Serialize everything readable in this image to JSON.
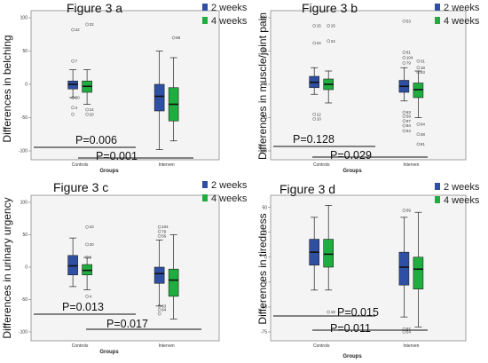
{
  "chart_data": [
    {
      "type": "box",
      "title": "Figure 3 a",
      "ylabel": "Differences in belching",
      "xlabel": "Groups",
      "categories": [
        "Controls",
        "Interven"
      ],
      "ylim": [
        -100,
        100
      ],
      "yticks": [
        100,
        50,
        0,
        -50,
        -100
      ],
      "ytick_labels": [
        "100",
        "50",
        "0",
        "-50",
        "-100"
      ],
      "legend": [
        {
          "label": "2 weeks",
          "color": "#2e4fa3"
        },
        {
          "label": "4 weeks",
          "color": "#1fad3f"
        }
      ],
      "series": [
        {
          "name": "2 weeks",
          "color": "#2e4fa3",
          "boxes": [
            {
              "category": "Controls",
              "min": -20,
              "q1": -7,
              "median": 0,
              "q3": 5,
              "max": 22,
              "outliers": [
                {
                  "v": 82,
                  "label": "22"
                },
                {
                  "v": 35,
                  "label": "7"
                },
                {
                  "v": -20,
                  "label": "20"
                },
                {
                  "v": -35,
                  "label": "4"
                },
                {
                  "v": -45,
                  "label": ""
                }
              ]
            },
            {
              "category": "Interven",
              "min": -98,
              "q1": -40,
              "median": -18,
              "q3": 0,
              "max": 50,
              "outliers": []
            }
          ]
        },
        {
          "name": "4 weeks",
          "color": "#1fad3f",
          "boxes": [
            {
              "category": "Controls",
              "min": -30,
              "q1": -12,
              "median": -3,
              "q3": 5,
              "max": 22,
              "outliers": [
                {
                  "v": 90,
                  "label": "22"
                },
                {
                  "v": -38,
                  "label": "14"
                },
                {
                  "v": -45,
                  "label": "20"
                }
              ]
            },
            {
              "category": "Interven",
              "min": -85,
              "q1": -55,
              "median": -30,
              "q3": -5,
              "max": 40,
              "outliers": [
                {
                  "v": 70,
                  "label": "68"
                }
              ]
            }
          ]
        }
      ],
      "annotations": [
        {
          "text": "P=0.006",
          "level": 0
        },
        {
          "text": "P=0.001",
          "level": 1
        }
      ]
    },
    {
      "type": "box",
      "title": "Figure 3 b",
      "ylabel": "Differences in muscle/joint pain",
      "xlabel": "Groups",
      "categories": [
        "Controls",
        "Interven"
      ],
      "ylim": [
        -100,
        100
      ],
      "yticks": [
        100,
        50,
        0,
        -50,
        -100
      ],
      "ytick_labels": [
        "100",
        "50",
        "0",
        "-50",
        "-100"
      ],
      "legend": [
        {
          "label": "2 weeks",
          "color": "#2e4fa3"
        },
        {
          "label": "4 weeks",
          "color": "#1fad3f"
        }
      ],
      "series": [
        {
          "name": "2 weeks",
          "color": "#2e4fa3",
          "boxes": [
            {
              "category": "Controls",
              "min": -15,
              "q1": -5,
              "median": 3,
              "q3": 12,
              "max": 25,
              "outliers": [
                {
                  "v": 88,
                  "label": "15"
                },
                {
                  "v": 62,
                  "label": "24"
                },
                {
                  "v": -45,
                  "label": "12"
                },
                {
                  "v": -52,
                  "label": "10"
                }
              ]
            },
            {
              "category": "Interven",
              "min": -25,
              "q1": -12,
              "median": -3,
              "q3": 6,
              "max": 25,
              "outliers": [
                {
                  "v": 95,
                  "label": "53"
                },
                {
                  "v": 48,
                  "label": "61"
                },
                {
                  "v": 40,
                  "label": "104"
                },
                {
                  "v": 32,
                  "label": "79"
                },
                {
                  "v": -42,
                  "label": "63"
                },
                {
                  "v": -48,
                  "label": "59"
                },
                {
                  "v": -55,
                  "label": "97"
                },
                {
                  "v": -62,
                  "label": "84"
                },
                {
                  "v": -70,
                  "label": "64"
                }
              ]
            }
          ]
        },
        {
          "name": "4 weeks",
          "color": "#1fad3f",
          "boxes": [
            {
              "category": "Controls",
              "min": -28,
              "q1": -8,
              "median": 0,
              "q3": 8,
              "max": 20,
              "outliers": [
                {
                  "v": 88,
                  "label": "15"
                },
                {
                  "v": 65,
                  "label": "24"
                }
              ]
            },
            {
              "category": "Interven",
              "min": -50,
              "q1": -20,
              "median": -8,
              "q3": 2,
              "max": 20,
              "outliers": [
                {
                  "v": 35,
                  "label": "31"
                },
                {
                  "v": 25,
                  "label": "18"
                },
                {
                  "v": 18,
                  "label": "53"
                },
                {
                  "v": -60,
                  "label": "64"
                },
                {
                  "v": -75,
                  "label": "28"
                },
                {
                  "v": -90,
                  "label": "81"
                }
              ]
            }
          ]
        }
      ],
      "annotations": [
        {
          "text": "P=0.128",
          "level": 0
        },
        {
          "text": "P=0.029",
          "level": 1
        }
      ]
    },
    {
      "type": "box",
      "title": "Figure 3 c",
      "ylabel": "Differences in urinary urgency",
      "xlabel": "Groups",
      "categories": [
        "Controls",
        "Interven"
      ],
      "ylim": [
        -100,
        100
      ],
      "yticks": [
        100,
        50,
        0,
        -50,
        -100
      ],
      "ytick_labels": [
        "100",
        "50",
        "0",
        "-50",
        "-100"
      ],
      "legend": [
        {
          "label": "2 weeks",
          "color": "#2e4fa3"
        },
        {
          "label": "4 weeks",
          "color": "#1fad3f"
        }
      ],
      "series": [
        {
          "name": "2 weeks",
          "color": "#2e4fa3",
          "boxes": [
            {
              "category": "Controls",
              "min": -30,
              "q1": -12,
              "median": 2,
              "q3": 18,
              "max": 45,
              "outliers": []
            },
            {
              "category": "Interven",
              "min": -60,
              "q1": -25,
              "median": -10,
              "q3": 0,
              "max": 42,
              "outliers": [
                {
                  "v": 62,
                  "label": "104"
                },
                {
                  "v": 55,
                  "label": "79"
                },
                {
                  "v": 48,
                  "label": "56"
                },
                {
                  "v": -60,
                  "label": "63"
                },
                {
                  "v": -66,
                  "label": "94"
                },
                {
                  "v": -72,
                  "label": ""
                }
              ]
            }
          ]
        },
        {
          "name": "4 weeks",
          "color": "#1fad3f",
          "boxes": [
            {
              "category": "Controls",
              "min": -35,
              "q1": -12,
              "median": -5,
              "q3": 4,
              "max": 15,
              "outliers": [
                {
                  "v": 62,
                  "label": "10"
                },
                {
                  "v": 35,
                  "label": "20"
                },
                {
                  "v": 15,
                  "label": "9"
                },
                {
                  "v": -45,
                  "label": "4"
                }
              ]
            },
            {
              "category": "Interven",
              "min": -80,
              "q1": -45,
              "median": -20,
              "q3": -3,
              "max": 50,
              "outliers": []
            }
          ]
        }
      ],
      "annotations": [
        {
          "text": "P=0.013",
          "level": 0
        },
        {
          "text": "P=0.017",
          "level": 1
        }
      ]
    },
    {
      "type": "box",
      "title": "Figure 3 d",
      "ylabel": "Differences in tiredness",
      "xlabel": "Groups",
      "categories": [
        "Controls",
        "Interven"
      ],
      "ylim": [
        -75,
        55
      ],
      "yticks": [
        50,
        25,
        0,
        -25,
        -50,
        -75
      ],
      "ytick_labels": [
        "50",
        "25",
        "0",
        "-25",
        "-50",
        "-75"
      ],
      "legend": [
        {
          "label": "2 weeks",
          "color": "#2e4fa3"
        },
        {
          "label": "4 weeks",
          "color": "#1fad3f"
        }
      ],
      "series": [
        {
          "name": "2 weeks",
          "color": "#2e4fa3",
          "boxes": [
            {
              "category": "Controls",
              "min": -33,
              "q1": -8,
              "median": 5,
              "q3": 18,
              "max": 40,
              "outliers": []
            },
            {
              "category": "Interven",
              "min": -60,
              "q1": -28,
              "median": -10,
              "q3": 5,
              "max": 40,
              "outliers": [
                {
                  "v": 47,
                  "label": "69"
                },
                {
                  "v": -72,
                  "label": "97"
                },
                {
                  "v": -77,
                  "label": "54"
                }
              ]
            }
          ]
        },
        {
          "name": "4 weeks",
          "color": "#1fad3f",
          "boxes": [
            {
              "category": "Controls",
              "min": -33,
              "q1": -10,
              "median": 3,
              "q3": 18,
              "max": 52,
              "outliers": [
                {
                  "v": -55,
                  "label": "18"
                }
              ]
            },
            {
              "category": "Interven",
              "min": -70,
              "q1": -32,
              "median": -12,
              "q3": 0,
              "max": 45,
              "outliers": []
            }
          ]
        }
      ],
      "annotations": [
        {
          "text": "P=0.015",
          "level": 0
        },
        {
          "text": "P=0.011",
          "level": 1
        }
      ]
    }
  ]
}
